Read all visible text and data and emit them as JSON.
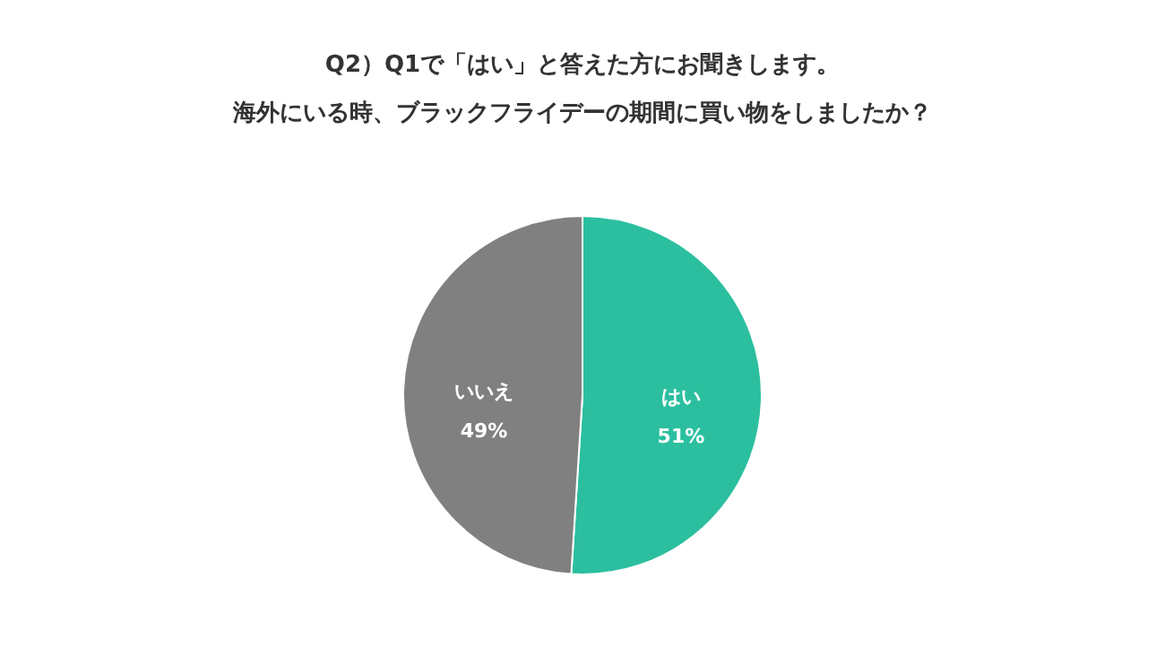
{
  "chart_data": {
    "type": "pie",
    "title": "Q2）Q1で「はい」と答えた方にお聞きします。",
    "subtitle": "海外にいる時、ブラックフライデーの期間に買い物をしましたか？",
    "categories": [
      "はい",
      "いいえ"
    ],
    "values": [
      51,
      49
    ],
    "colors": [
      "#2bbf9f",
      "#808080"
    ],
    "value_labels": [
      "51%",
      "49%"
    ],
    "legend": false
  }
}
